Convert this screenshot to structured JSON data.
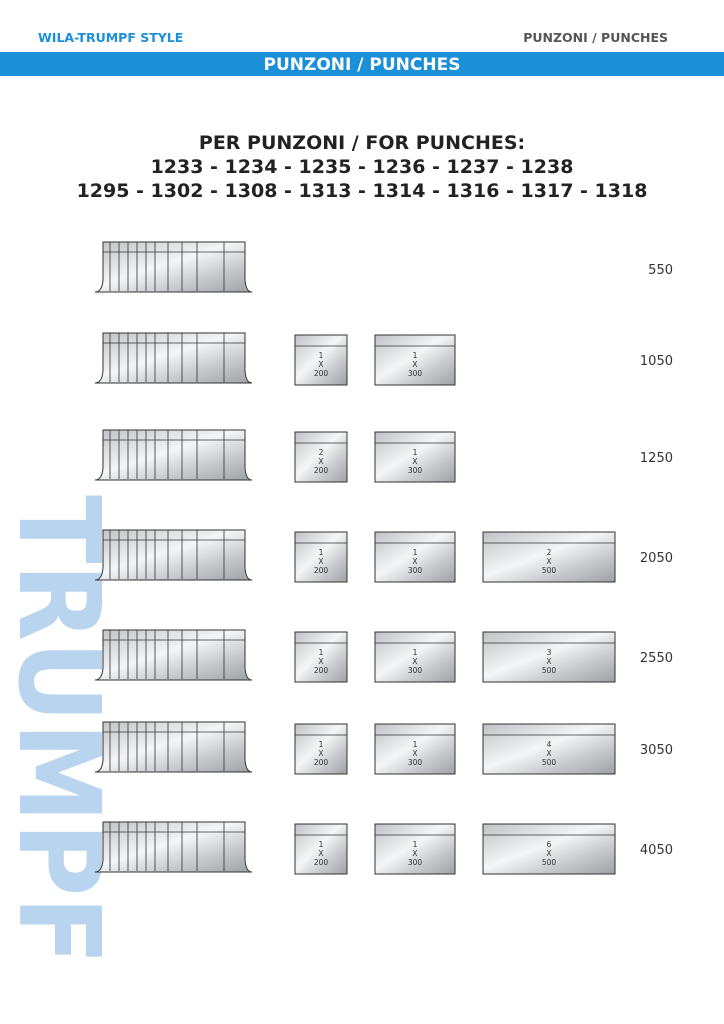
{
  "header": {
    "left": "WILA-TRUMPF STYLE",
    "right": "PUNZONI / PUNCHES",
    "banner": "PUNZONI / PUNCHES"
  },
  "heading": {
    "line1": "PER PUNZONI / FOR PUNCHES:",
    "line2": "1233 - 1234 - 1235 - 1236 - 1237 - 1238",
    "line3": "1295 - 1302 - 1308 - 1313 - 1314 - 1316 - 1317 - 1318"
  },
  "watermark": "TRUMPF",
  "rows": [
    {
      "length": 550,
      "pieces": []
    },
    {
      "length": 1050,
      "pieces": [
        {
          "count": 1,
          "x": "X",
          "size": 200
        },
        {
          "count": 1,
          "x": "X",
          "size": 300
        }
      ]
    },
    {
      "length": 1250,
      "pieces": [
        {
          "count": 2,
          "x": "X",
          "size": 200
        },
        {
          "count": 1,
          "x": "X",
          "size": 300
        }
      ]
    },
    {
      "length": 2050,
      "pieces": [
        {
          "count": 1,
          "x": "X",
          "size": 200
        },
        {
          "count": 1,
          "x": "X",
          "size": 300
        },
        {
          "count": 2,
          "x": "X",
          "size": 500
        }
      ]
    },
    {
      "length": 2550,
      "pieces": [
        {
          "count": 1,
          "x": "X",
          "size": 200
        },
        {
          "count": 1,
          "x": "X",
          "size": 300
        },
        {
          "count": 3,
          "x": "X",
          "size": 500
        }
      ]
    },
    {
      "length": 3050,
      "pieces": [
        {
          "count": 1,
          "x": "X",
          "size": 200
        },
        {
          "count": 1,
          "x": "X",
          "size": 300
        },
        {
          "count": 4,
          "x": "X",
          "size": 500
        }
      ]
    },
    {
      "length": 4050,
      "pieces": [
        {
          "count": 1,
          "x": "X",
          "size": 200
        },
        {
          "count": 1,
          "x": "X",
          "size": 300
        },
        {
          "count": 6,
          "x": "X",
          "size": 500
        }
      ]
    }
  ]
}
